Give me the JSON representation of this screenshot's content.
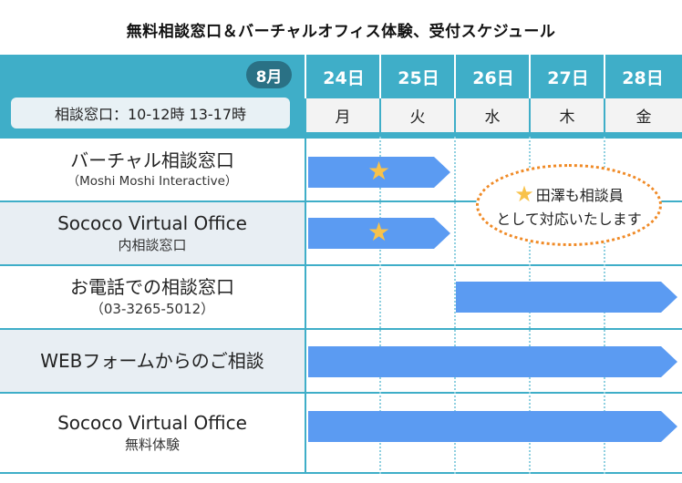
{
  "title": "無料相談窓口＆バーチャルオフィス体験、受付スケジュール",
  "month": "8月",
  "hours": "相談窓口：10-12時 13-17時",
  "dates": [
    "24日",
    "25日",
    "26日",
    "27日",
    "28日"
  ],
  "weekdays": [
    "月",
    "火",
    "水",
    "木",
    "金"
  ],
  "rows": [
    {
      "line1": "バーチャル相談窓口",
      "line2": "（Moshi Moshi Interactive）"
    },
    {
      "line1": "Sococo Virtual Office",
      "line2": "内相談窓口"
    },
    {
      "line1": "お電話での相談窓口",
      "line2": "（03-3265-5012）"
    },
    {
      "line1": "WEBフォームからのご相談",
      "line2": ""
    },
    {
      "line1": "Sococo Virtual Office",
      "line2": "無料体験"
    }
  ],
  "note": {
    "line1": "田澤も相談員",
    "line2": "として対応いたします"
  },
  "colors": {
    "header": "#3faec8",
    "month_pill": "#2a7185",
    "bar": "#5b9bf2",
    "star": "#f8c24a",
    "note_border": "#f08a26"
  }
}
